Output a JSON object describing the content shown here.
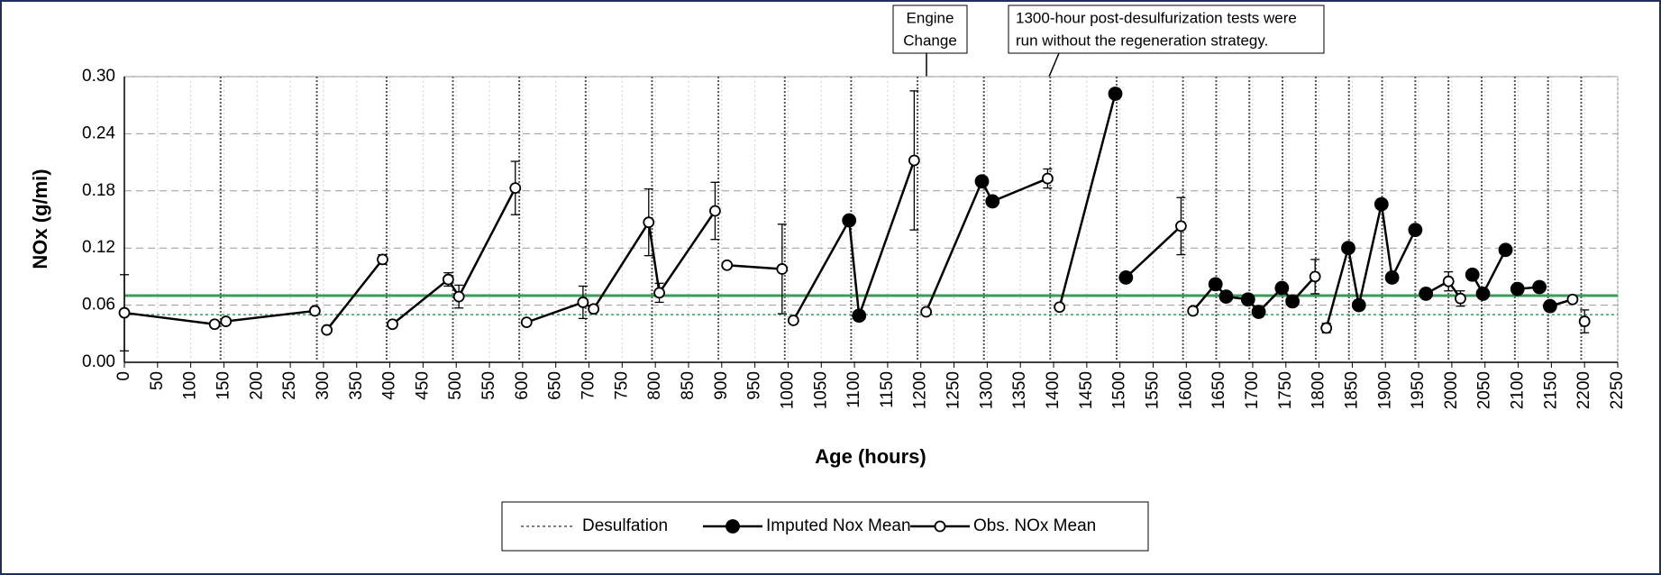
{
  "chart_data": {
    "type": "line",
    "x_label": "Age (hours)",
    "y_label": "NOx (g/mi)",
    "xlim": [
      0,
      2250
    ],
    "ylim": [
      0,
      0.3
    ],
    "xticks": [
      0,
      50,
      100,
      150,
      200,
      250,
      300,
      350,
      400,
      450,
      500,
      550,
      600,
      650,
      700,
      750,
      800,
      850,
      900,
      950,
      1000,
      1050,
      1100,
      1150,
      1200,
      1250,
      1300,
      1350,
      1400,
      1450,
      1500,
      1550,
      1600,
      1650,
      1700,
      1750,
      1800,
      1850,
      1900,
      1950,
      2000,
      2050,
      2100,
      2150,
      2200,
      2250
    ],
    "yticks": [
      {
        "value": 0,
        "label": "0.00"
      },
      0.06,
      0.12,
      0.18,
      0.24,
      {
        "value": 0.3,
        "label": "0.30"
      }
    ],
    "grid": true,
    "x": [
      0,
      136,
      153,
      287,
      null,
      305,
      389,
      null,
      404,
      488,
      504,
      589,
      null,
      606,
      691,
      707,
      790,
      806,
      890,
      null,
      908,
      991,
      null,
      1008,
      1092,
      1107,
      1190,
      null,
      1208,
      1292,
      1308,
      1391,
      null,
      1409,
      1493,
      null,
      1509,
      1592,
      null,
      1610,
      1644,
      1660,
      1693,
      1709,
      1744,
      1760,
      1794,
      null,
      1811,
      1844,
      1860,
      1894,
      1910,
      1945,
      null,
      1961,
      1995,
      2013,
      null,
      2031,
      2047,
      2081,
      null,
      2099,
      2132,
      null,
      2148,
      2182,
      null,
      2200
    ],
    "series": [
      {
        "name": "Imputed Nox Mean",
        "color": "#000000",
        "marker": "filled",
        "values": [
          null,
          null,
          null,
          null,
          null,
          null,
          null,
          null,
          null,
          null,
          null,
          null,
          null,
          null,
          null,
          null,
          null,
          null,
          null,
          null,
          null,
          null,
          null,
          null,
          0.149,
          0.049,
          null,
          null,
          null,
          0.19,
          0.169,
          null,
          null,
          null,
          0.282,
          null,
          0.089,
          null,
          null,
          null,
          0.082,
          0.069,
          0.066,
          0.053,
          0.078,
          0.064,
          null,
          null,
          null,
          0.12,
          0.06,
          0.166,
          0.089,
          0.139,
          null,
          0.072,
          null,
          null,
          null,
          0.092,
          0.072,
          0.118,
          null,
          0.077,
          0.079,
          null,
          0.059,
          null,
          null,
          null
        ]
      },
      {
        "name": "Obs. NOx Mean",
        "color": "#000000",
        "marker": "open",
        "values": [
          0.052,
          0.04,
          0.043,
          0.054,
          null,
          0.034,
          0.108,
          null,
          0.04,
          0.087,
          0.069,
          0.183,
          null,
          0.042,
          0.063,
          0.056,
          0.147,
          0.073,
          0.159,
          null,
          0.102,
          0.098,
          null,
          0.044,
          null,
          null,
          0.212,
          null,
          0.053,
          null,
          null,
          0.193,
          null,
          0.058,
          null,
          null,
          null,
          0.143,
          null,
          0.054,
          null,
          null,
          null,
          null,
          null,
          null,
          0.09,
          null,
          0.036,
          null,
          null,
          null,
          null,
          null,
          null,
          null,
          0.085,
          0.067,
          null,
          null,
          null,
          null,
          null,
          null,
          null,
          null,
          null,
          0.066,
          null,
          0.043
        ],
        "errors": [
          0.04,
          null,
          null,
          null,
          null,
          null,
          0.005,
          null,
          null,
          0.007,
          0.012,
          0.028,
          null,
          null,
          0.017,
          null,
          0.035,
          0.01,
          0.03,
          null,
          null,
          0.047,
          null,
          null,
          null,
          null,
          0.073,
          null,
          null,
          null,
          null,
          0.01,
          null,
          null,
          null,
          null,
          null,
          0.03,
          null,
          null,
          null,
          null,
          null,
          null,
          null,
          null,
          0.018,
          null,
          0.005,
          null,
          null,
          null,
          null,
          null,
          null,
          null,
          0.01,
          0.008,
          null,
          null,
          null,
          null,
          null,
          null,
          null,
          null,
          null,
          null,
          null,
          0.012
        ]
      }
    ],
    "desulfation": {
      "name": "Desulfation",
      "color": "#555555",
      "x": [
        145,
        290,
        395,
        495,
        595,
        695,
        795,
        895,
        995,
        1095,
        1195,
        1295,
        1395,
        1495,
        1595,
        1645,
        1695,
        1745,
        1795,
        1845,
        1895,
        1945,
        1995,
        2045,
        2095,
        2145,
        2195
      ]
    },
    "reference_lines": [
      {
        "value": 0.07,
        "color": "#3d9a5f",
        "style": "solid"
      },
      {
        "value": 0.05,
        "color": "#3d9a5f",
        "style": "dotted"
      }
    ],
    "annotations": [
      {
        "lines": [
          "Engine",
          "Change"
        ]
      },
      {
        "lines": [
          "1300-hour post-desulfurization tests were",
          "run without the regeneration strategy."
        ]
      }
    ]
  }
}
